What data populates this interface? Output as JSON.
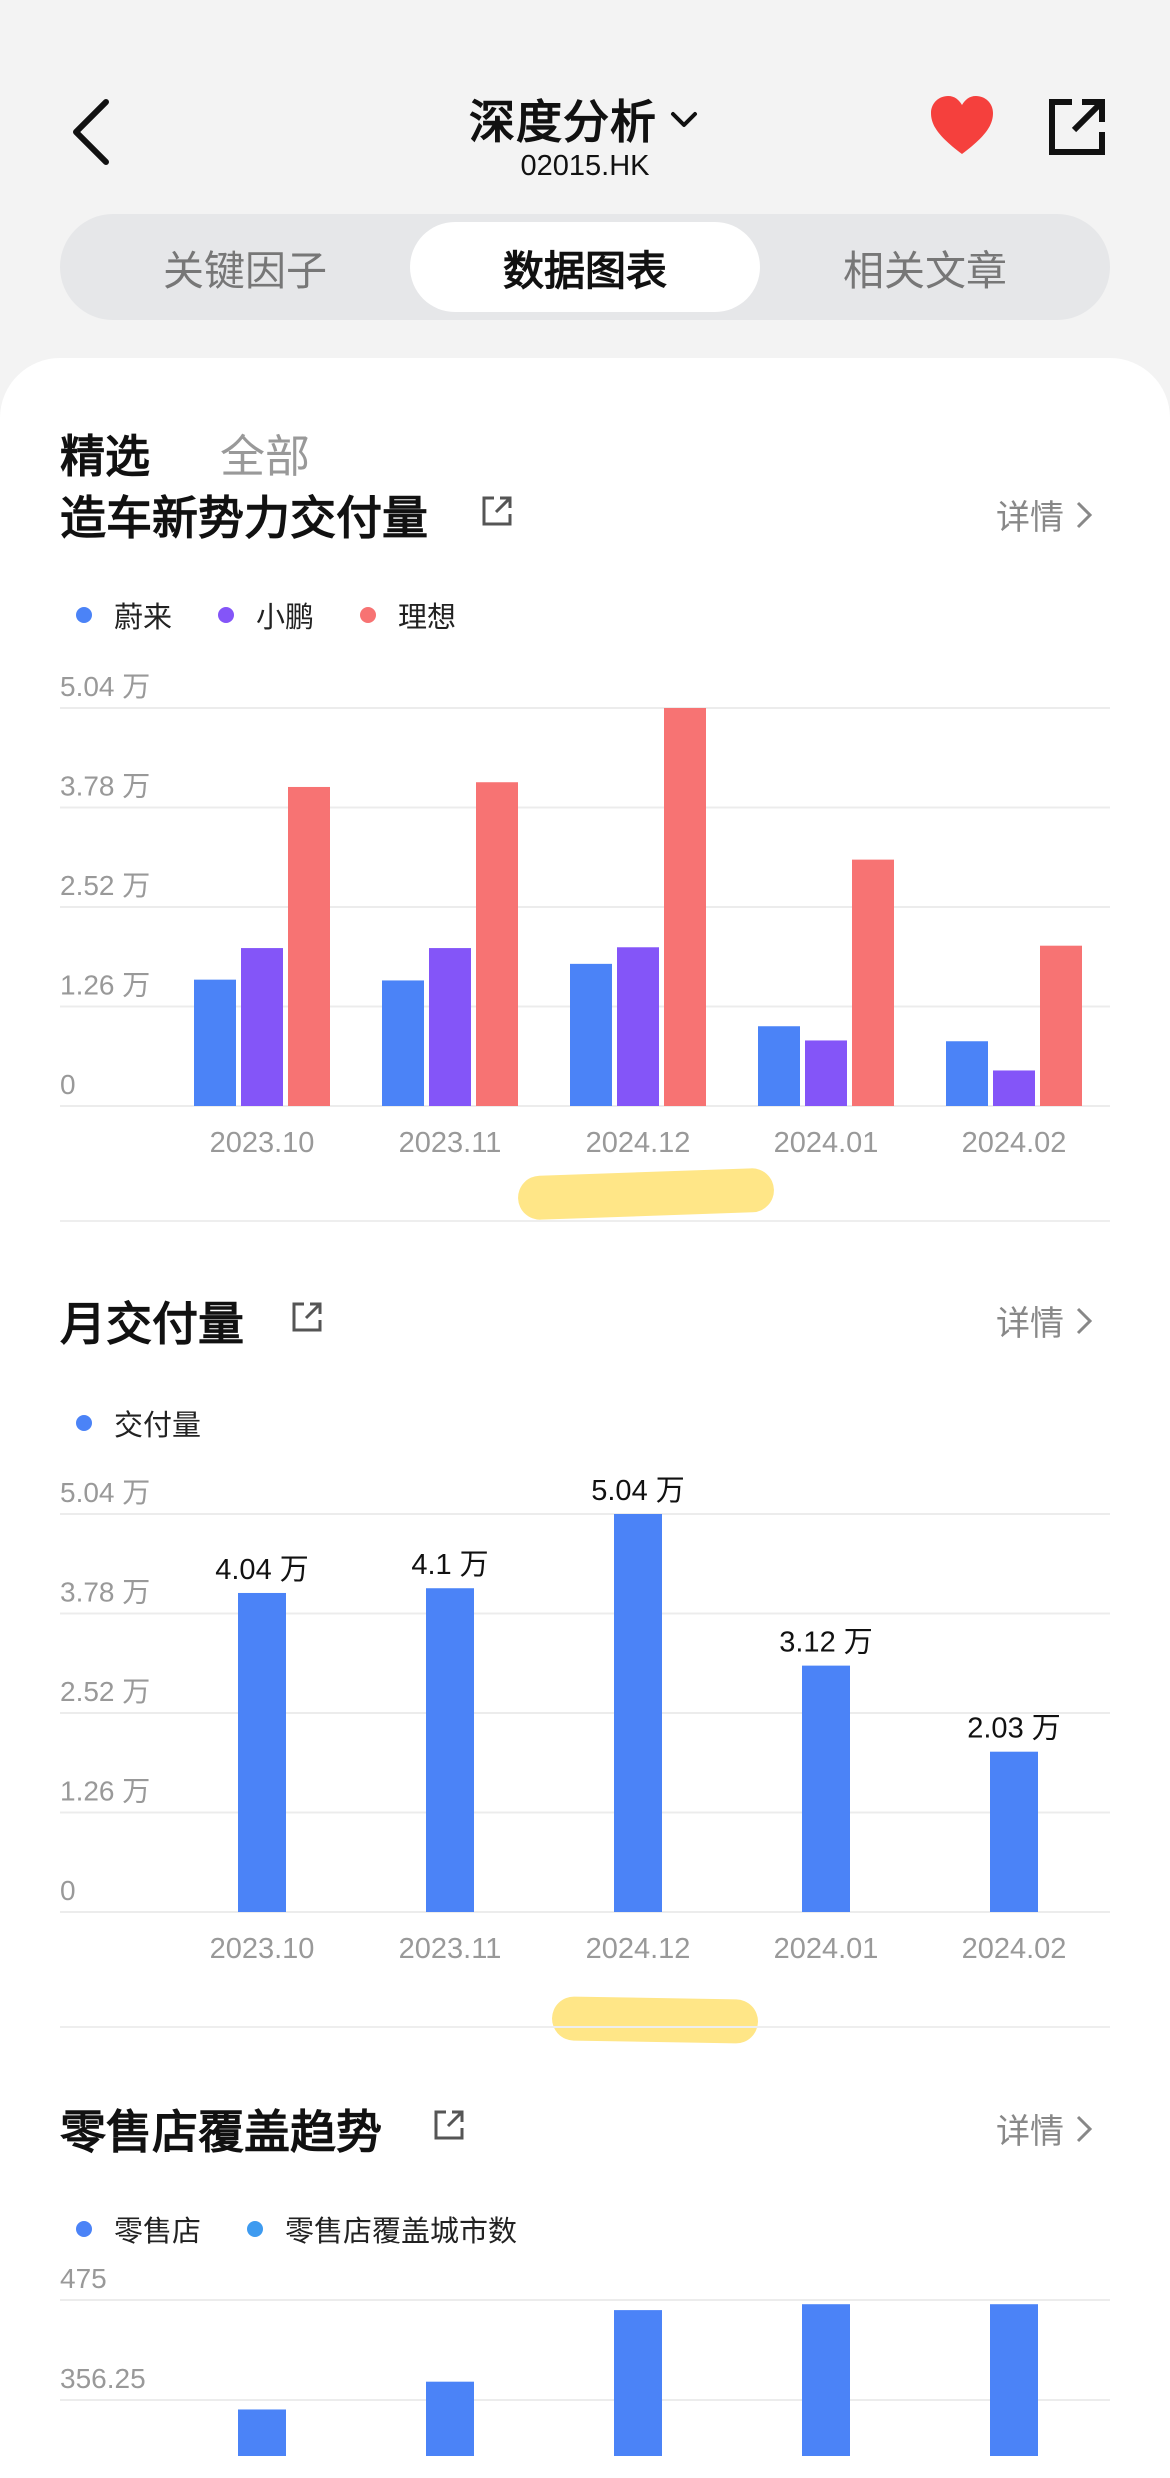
{
  "header": {
    "title": "深度分析",
    "subtitle": "02015.HK",
    "icons": [
      "back-arrow-icon",
      "chevron-down-icon",
      "heart-icon",
      "share-icon"
    ]
  },
  "tabs": [
    {
      "label": "关键因子",
      "active": false
    },
    {
      "label": "数据图表",
      "active": true
    },
    {
      "label": "相关文章",
      "active": false
    }
  ],
  "filters": [
    {
      "label": "精选",
      "active": true
    },
    {
      "label": "全部",
      "active": false
    }
  ],
  "detail_label": "详情",
  "colors": {
    "nio": "#4b83f7",
    "xpeng": "#8455f8",
    "li": "#f77373",
    "primary": "#4b83f7",
    "secondary": "#3e9bf0"
  },
  "sections": [
    {
      "title": "造车新势力交付量"
    },
    {
      "title": "月交付量"
    },
    {
      "title": "零售店覆盖趋势"
    }
  ],
  "chart_data": [
    {
      "type": "bar",
      "title": "造车新势力交付量",
      "categories": [
        "2023.10",
        "2023.11",
        "2024.12",
        "2024.01",
        "2024.02"
      ],
      "y_ticks": [
        "0",
        "1.26 万",
        "2.52 万",
        "3.78 万",
        "5.04 万"
      ],
      "ylim": [
        0,
        5.04
      ],
      "y_unit": "万",
      "series": [
        {
          "name": "蔚来",
          "values": [
            1.6,
            1.59,
            1.8,
            1.01,
            0.82
          ]
        },
        {
          "name": "小鹏",
          "values": [
            2.0,
            2.0,
            2.01,
            0.83,
            0.45
          ]
        },
        {
          "name": "理想",
          "values": [
            4.04,
            4.1,
            5.04,
            3.12,
            2.03
          ]
        }
      ],
      "grid": true,
      "legend": "top-left"
    },
    {
      "type": "bar",
      "title": "月交付量",
      "categories": [
        "2023.10",
        "2023.11",
        "2024.12",
        "2024.01",
        "2024.02"
      ],
      "y_ticks": [
        "0",
        "1.26 万",
        "2.52 万",
        "3.78 万",
        "5.04 万"
      ],
      "ylim": [
        0,
        5.04
      ],
      "y_unit": "万",
      "series": [
        {
          "name": "交付量",
          "values": [
            4.04,
            4.1,
            5.04,
            3.12,
            2.03
          ],
          "labels": [
            "4.04 万",
            "4.1 万",
            "5.04 万",
            "3.12 万",
            "2.03 万"
          ]
        }
      ],
      "grid": true,
      "legend": "top-left"
    },
    {
      "type": "bar",
      "title": "零售店覆盖趋势",
      "y_ticks": [
        "356.25",
        "475"
      ],
      "ylim": [
        0,
        475
      ],
      "series": [
        {
          "name": "零售店",
          "values": [
            345,
            378,
            463,
            470,
            470
          ]
        },
        {
          "name": "零售店覆盖城市数",
          "values": []
        }
      ],
      "grid": true,
      "legend": "top-left"
    }
  ]
}
